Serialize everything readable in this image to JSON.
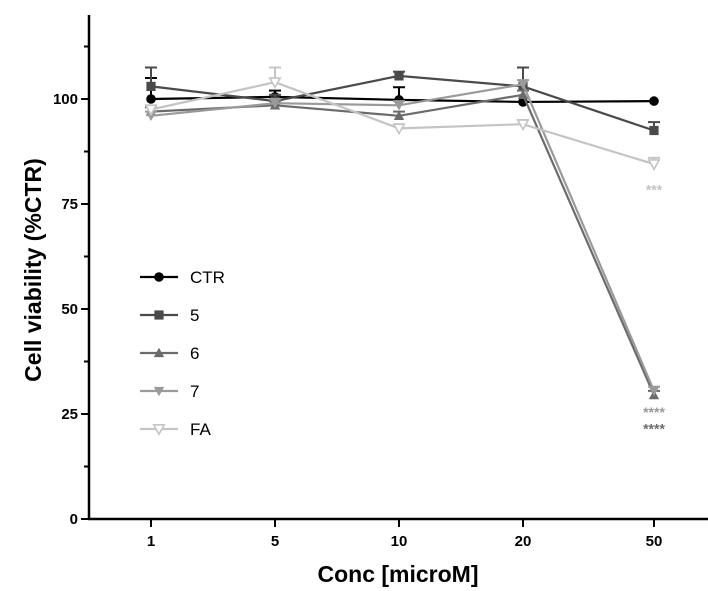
{
  "chart_data": {
    "type": "line",
    "title": "",
    "xlabel": "Conc [microM]",
    "ylabel": "Cell viability (%CTR)",
    "categories": [
      "1",
      "5",
      "10",
      "20",
      "50"
    ],
    "ylim": [
      0,
      120
    ],
    "y_ticks": [
      "0",
      "25",
      "50",
      "75",
      "100"
    ],
    "grid": false,
    "legend_position": "left-middle",
    "series": [
      {
        "name": "CTR",
        "values": [
          100,
          100.5,
          99.8,
          99.3,
          99.5
        ],
        "errors": [
          5,
          1.5,
          3,
          0,
          0
        ],
        "color": "#000000",
        "marker": "circle"
      },
      {
        "name": "5",
        "values": [
          103,
          99.5,
          105.5,
          103,
          92.5
        ],
        "errors": [
          4.5,
          1.5,
          1,
          4.5,
          2
        ],
        "color": "#4a4a4a",
        "marker": "square"
      },
      {
        "name": "6",
        "values": [
          97,
          98.5,
          96,
          101,
          29.5
        ],
        "errors": [
          1,
          1,
          1,
          1,
          1
        ],
        "color": "#6b6b6b",
        "marker": "triangle-up"
      },
      {
        "name": "7",
        "values": [
          96,
          99,
          98.5,
          103.5,
          30.5
        ],
        "errors": [
          1,
          1,
          1,
          1,
          1
        ],
        "color": "#9a9a9a",
        "marker": "triangle-down"
      },
      {
        "name": "FA",
        "values": [
          97.5,
          104,
          93,
          94,
          84.5
        ],
        "errors": [
          1,
          3.5,
          1,
          1,
          1.5
        ],
        "color": "#c4c4c4",
        "marker": "triangle-down-open"
      }
    ],
    "annotations": [
      {
        "text": "***",
        "category": "50",
        "y": 78.5,
        "color": "#c4c4c4"
      },
      {
        "text": "****",
        "category": "50",
        "y": 25.5,
        "color": "#9a9a9a"
      },
      {
        "text": "****",
        "category": "50",
        "y": 21.5,
        "color": "#6b6b6b"
      }
    ]
  }
}
